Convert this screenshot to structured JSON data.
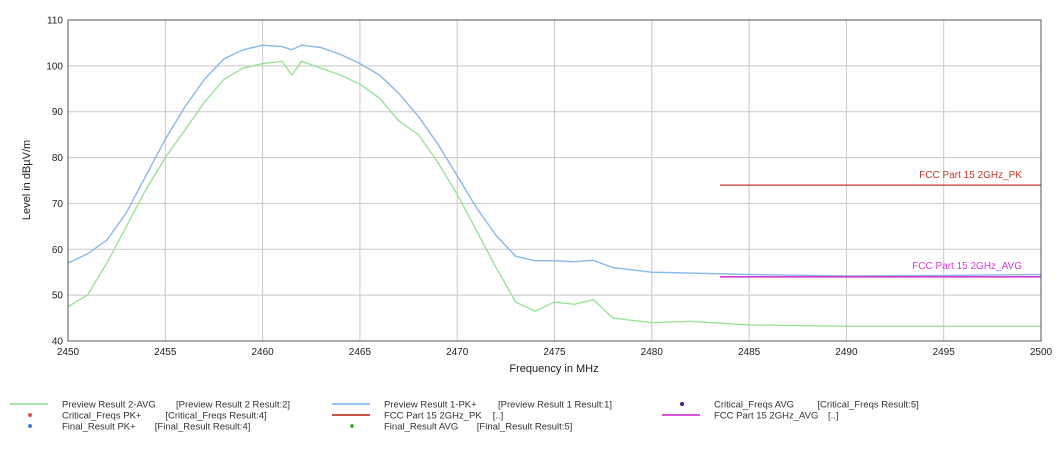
{
  "colors": {
    "preview_avg": "#9be39b",
    "preview_pk": "#8ab8e8",
    "critical_pk": "#d9534f",
    "critical_avg": "#2b2b8c",
    "final_pk": "#3a82d6",
    "final_avg": "#3cb043",
    "limit_pk": "#c0392b",
    "limit_avg": "#d23bd2",
    "grid": "#c8c8c8"
  },
  "chart_data": {
    "type": "line",
    "xlabel": "Frequency in MHz",
    "ylabel": "Level in dBµV/m",
    "xlim": [
      2450,
      2500
    ],
    "ylim": [
      40,
      110
    ],
    "x_ticks": [
      2450,
      2455,
      2460,
      2465,
      2470,
      2475,
      2480,
      2485,
      2490,
      2495,
      2500
    ],
    "y_ticks": [
      40,
      50,
      60,
      70,
      80,
      90,
      100,
      110
    ],
    "grid": true,
    "legend_position": "bottom",
    "series": [
      {
        "name": "Preview Result 1-PK+",
        "x": [
          2450,
          2451,
          2452,
          2453,
          2454,
          2455,
          2456,
          2457,
          2458,
          2459,
          2460,
          2461,
          2461.5,
          2462,
          2463,
          2464,
          2465,
          2466,
          2467,
          2468,
          2469,
          2470,
          2471,
          2472,
          2473,
          2474,
          2475,
          2476,
          2477,
          2478,
          2480,
          2485,
          2490,
          2495,
          2500
        ],
        "y": [
          57,
          59,
          62,
          68,
          76,
          84,
          91,
          97,
          101.5,
          103.5,
          104.5,
          104.2,
          103.5,
          104.5,
          104,
          102.5,
          100.5,
          98,
          94,
          89,
          83,
          76,
          69,
          63,
          58.5,
          57.5,
          57.5,
          57.3,
          57.6,
          56,
          55,
          54.5,
          54.2,
          54.3,
          54.5
        ]
      },
      {
        "name": "Preview Result 2-AVG",
        "x": [
          2450,
          2451,
          2452,
          2453,
          2454,
          2455,
          2456,
          2457,
          2458,
          2459,
          2460,
          2461,
          2461.5,
          2462,
          2463,
          2464,
          2465,
          2466,
          2467,
          2468,
          2469,
          2470,
          2471,
          2472,
          2473,
          2474,
          2475,
          2476,
          2477,
          2478,
          2480,
          2482,
          2485,
          2490,
          2495,
          2500
        ],
        "y": [
          47.5,
          50,
          57,
          65,
          73,
          80,
          86,
          92,
          97,
          99.5,
          100.5,
          101,
          98,
          101,
          99.5,
          98,
          96,
          93,
          88,
          85,
          79,
          72,
          64,
          56,
          48.5,
          46.5,
          48.5,
          48,
          49,
          45,
          44,
          44.3,
          43.5,
          43.2,
          43.2,
          43.2
        ]
      },
      {
        "name": "FCC Part 15 2GHz_PK",
        "x": [
          2483.5,
          2500
        ],
        "y": [
          74,
          74
        ]
      },
      {
        "name": "FCC Part 15 2GHz_AVG",
        "x": [
          2483.5,
          2500
        ],
        "y": [
          54,
          54
        ]
      }
    ],
    "annotations": {
      "limit_pk_label": "FCC Part 15 2GHz_PK",
      "limit_avg_label": "FCC Part 15 2GHz_AVG"
    }
  },
  "legend": [
    {
      "marker": "line",
      "color_key": "preview_avg",
      "label": "Preview Result 2-AVG",
      "source": "[Preview Result 2 Result:2]"
    },
    {
      "marker": "line",
      "color_key": "preview_pk",
      "label": "Preview Result 1-PK+",
      "source": "[Preview Result 1 Result:1]"
    },
    {
      "marker": "dot",
      "color_key": "critical_avg",
      "label": "Critical_Freqs AVG",
      "source": "[Critical_Freqs Result:5]"
    },
    {
      "marker": "dot",
      "color_key": "critical_pk",
      "label": "Critical_Freqs PK+",
      "source": "[Critical_Freqs Result:4]"
    },
    {
      "marker": "line",
      "color_key": "limit_pk",
      "label": "FCC Part 15 2GHz_PK",
      "source": "[..]"
    },
    {
      "marker": "line",
      "color_key": "limit_avg",
      "label": "FCC Part 15 2GHz_AVG",
      "source": "[..]"
    },
    {
      "marker": "dot",
      "color_key": "final_pk",
      "label": "Final_Result PK+",
      "source": "[Final_Result Result:4]"
    },
    {
      "marker": "dot",
      "color_key": "final_avg",
      "label": "Final_Result AVG",
      "source": "[Final_Result Result:5]"
    }
  ]
}
